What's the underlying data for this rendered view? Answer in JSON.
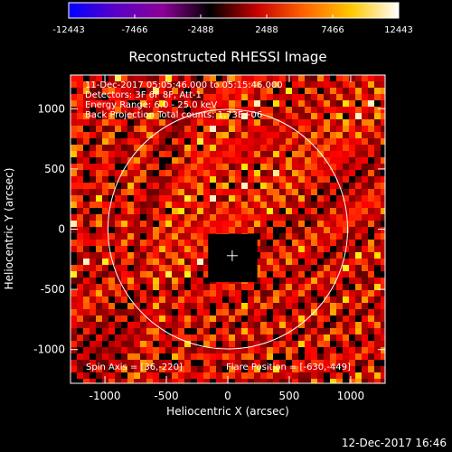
{
  "chart_data": {
    "type": "heatmap",
    "title": "Reconstructed RHESSI Image",
    "xlabel": "Heliocentric X (arcsec)",
    "ylabel": "Heliocentric Y (arcsec)",
    "xlim": [
      -1280,
      1280
    ],
    "ylim": [
      -1280,
      1280
    ],
    "xticks": [
      -1000,
      -500,
      0,
      500,
      1000
    ],
    "yticks": [
      -1000,
      -500,
      0,
      500,
      1000
    ],
    "xtick_labels": [
      "-1000",
      "-500",
      "0",
      "500",
      "1000"
    ],
    "ytick_labels": [
      "-1000",
      "-500",
      "0",
      "500",
      "1000"
    ],
    "colorbar": {
      "min": -12443,
      "max": 12443,
      "ticks": [
        -12443,
        -7466,
        -2488,
        2488,
        7466,
        12443
      ],
      "tick_labels": [
        "-12443",
        "-7466",
        "-2488",
        "2488",
        "7466",
        "12443"
      ],
      "colors": [
        "#0000ff",
        "#5a00c8",
        "#8c0096",
        "#000000",
        "#c80000",
        "#ff6400",
        "#ffc800",
        "#ffffff"
      ]
    },
    "info_lines": [
      "11-Dec-2017 05:05:46.000 to 05:15:46.000",
      "Detectors: 3F 6F 8F, Att-1",
      "Energy Range: 6.0 - 25.0 keV",
      "Back Projection   Total counts: 1.73E+06"
    ],
    "spin_axis_label": "Spin Axis = [36,-220]",
    "flare_position_label": "Flare Position = [-630,-449]",
    "spin_axis": [
      36,
      -220
    ],
    "flare_position": [
      -630,
      -449
    ],
    "solar_limb_radius_arcsec": 975,
    "pixel_size_arcsec": 64,
    "masked_region": {
      "x": [
        -160,
        240
      ],
      "y": [
        -440,
        -40
      ]
    },
    "center_marker": [
      36,
      -220
    ]
  },
  "footer": {
    "timestamp": "12-Dec-2017 16:46"
  }
}
